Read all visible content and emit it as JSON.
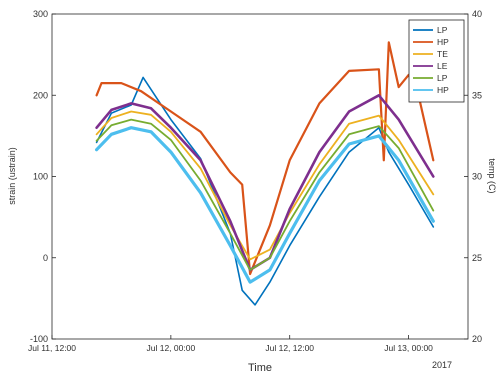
{
  "chart_data": {
    "type": "line",
    "title": "",
    "xlabel": "Time",
    "ylabel": "strain (ustrain)",
    "ylabel_right": "temp (C)",
    "x_tick_labels": [
      "Jul 11, 12:00",
      "Jul 12, 00:00",
      "Jul 12, 12:00",
      "Jul 13, 00:00"
    ],
    "x_tick_hours": [
      0,
      12,
      24,
      36
    ],
    "xlim_hours": [
      0,
      42
    ],
    "x_year_label": "2017",
    "ylim": [
      -100,
      300
    ],
    "yticks": [
      -100,
      0,
      100,
      200,
      300
    ],
    "ylim_right": [
      20,
      40
    ],
    "yticks_right": [
      20,
      25,
      30,
      35,
      40
    ],
    "legend_position": "top-right",
    "grid": false,
    "series": [
      {
        "name": "LP",
        "color": "#0072BD",
        "x": [
          4.5,
          6,
          8,
          9.2,
          12,
          15,
          18,
          19.2,
          20.5,
          22,
          24,
          27,
          30,
          33,
          34,
          36,
          38.5
        ],
        "y": [
          142,
          178,
          188,
          222,
          170,
          122,
          30,
          -40,
          -58,
          -30,
          15,
          75,
          130,
          160,
          130,
          90,
          38
        ]
      },
      {
        "name": "HP",
        "color": "#D95319",
        "x": [
          4.5,
          5,
          7,
          9,
          12,
          15,
          18,
          19.2,
          20,
          22,
          24,
          27,
          30,
          33,
          33.5,
          34,
          35,
          36,
          37,
          38.5
        ],
        "y": [
          200,
          215,
          215,
          205,
          180,
          155,
          105,
          90,
          -20,
          40,
          120,
          190,
          230,
          232,
          120,
          265,
          210,
          225,
          200,
          120
        ]
      },
      {
        "name": "TE",
        "color": "#EDB120",
        "x": [
          4.5,
          6,
          8,
          10,
          12,
          15,
          18,
          20,
          22,
          24,
          27,
          30,
          33,
          35,
          38.5
        ],
        "y": [
          152,
          172,
          180,
          176,
          155,
          110,
          40,
          -2,
          10,
          55,
          115,
          165,
          175,
          145,
          78
        ]
      },
      {
        "name": "LE",
        "color": "#7E2F8E",
        "x": [
          4.5,
          6,
          8,
          10,
          12,
          15,
          18,
          20,
          22,
          24,
          27,
          30,
          33,
          35,
          38.5
        ],
        "y": [
          160,
          182,
          190,
          184,
          160,
          120,
          45,
          -15,
          0,
          60,
          130,
          180,
          200,
          170,
          100
        ]
      },
      {
        "name": "LP",
        "color": "#77AC30",
        "x": [
          4.5,
          6,
          8,
          10,
          12,
          15,
          18,
          20,
          22,
          24,
          27,
          30,
          33,
          35,
          38.5
        ],
        "y": [
          144,
          163,
          170,
          165,
          145,
          95,
          30,
          -15,
          0,
          45,
          105,
          152,
          162,
          135,
          58
        ]
      },
      {
        "name": "HP",
        "color": "#4DBEEE",
        "x": [
          4.5,
          6,
          8,
          10,
          12,
          15,
          18,
          20,
          22,
          24,
          27,
          30,
          33,
          35,
          38.5
        ],
        "y": [
          133,
          152,
          160,
          155,
          130,
          80,
          15,
          -30,
          -15,
          30,
          95,
          140,
          150,
          120,
          45
        ]
      }
    ]
  }
}
